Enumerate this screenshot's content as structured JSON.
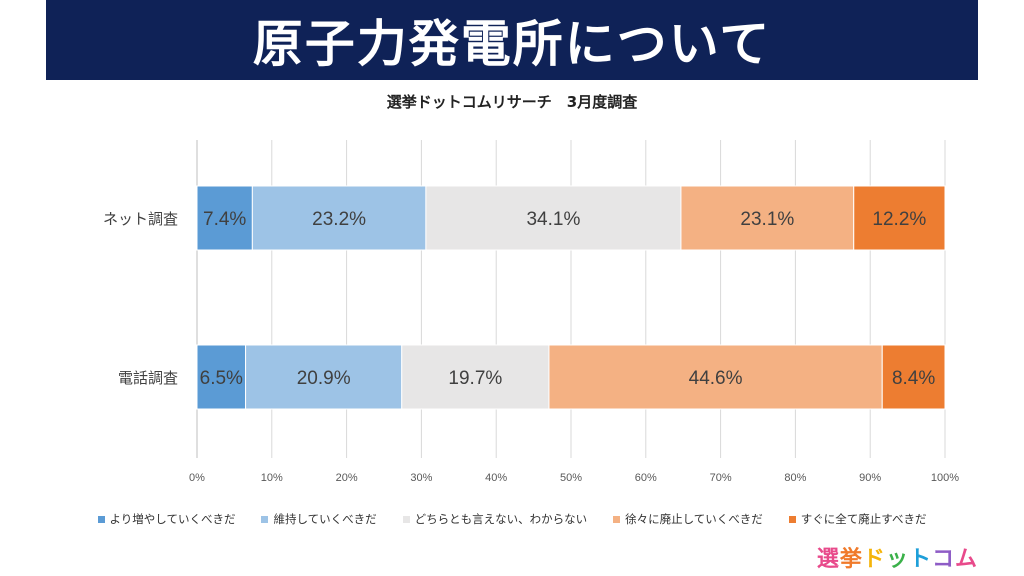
{
  "banner": {
    "title": "原子力発電所について"
  },
  "subtitle": "選挙ドットコムリサーチ　3月度調査",
  "logo": {
    "text": "選挙ドットコム"
  },
  "chart_data": {
    "type": "bar",
    "orientation": "horizontal",
    "stacked": "percent",
    "categories": [
      "ネット調査",
      "電話調査"
    ],
    "series": [
      {
        "name": "より増やしていくべきだ",
        "values": [
          7.4,
          6.5
        ],
        "labels": [
          "7.4%",
          "6.5%"
        ],
        "color": "#5b9bd5"
      },
      {
        "name": "維持していくべきだ",
        "values": [
          23.2,
          20.9
        ],
        "labels": [
          "23.2%",
          "20.9%"
        ],
        "color": "#9dc3e6"
      },
      {
        "name": "どちらとも言えない、わからない",
        "values": [
          34.1,
          19.7
        ],
        "labels": [
          "34.1%",
          "19.7%"
        ],
        "color": "#e7e6e6"
      },
      {
        "name": "徐々に廃止していくべきだ",
        "values": [
          23.1,
          44.6
        ],
        "labels": [
          "23.1%",
          "44.6%"
        ],
        "color": "#f4b183"
      },
      {
        "name": "すぐに全て廃止すべきだ",
        "values": [
          12.2,
          8.4
        ],
        "labels": [
          "12.2%",
          "8.4%"
        ],
        "color": "#ed7d31"
      }
    ],
    "xlim": [
      0,
      100
    ],
    "xticks": [
      "0%",
      "10%",
      "20%",
      "30%",
      "40%",
      "50%",
      "60%",
      "70%",
      "80%",
      "90%",
      "100%"
    ],
    "grid": true,
    "legend_position": "bottom"
  }
}
